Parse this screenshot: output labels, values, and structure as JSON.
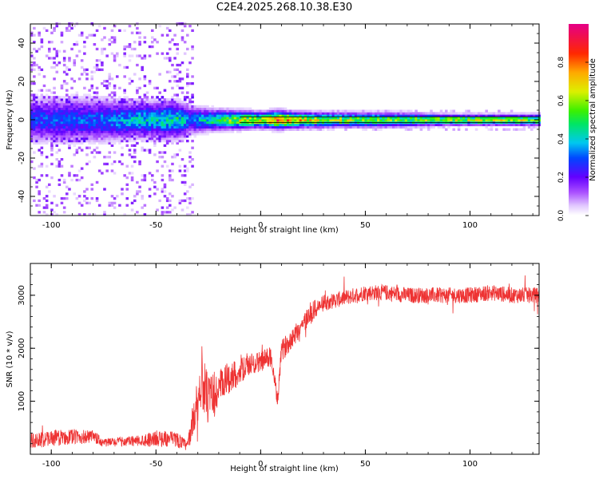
{
  "title": "C2E4.2025.268.10.38.E30",
  "chart_data": [
    {
      "type": "heatmap",
      "title": "C2E4.2025.268.10.38.E30",
      "xlabel": "Height of straight line (km)",
      "ylabel": "Frequency (Hz)",
      "xlim": [
        -110,
        133
      ],
      "ylim": [
        -50,
        50
      ],
      "xticks": [
        -100,
        -50,
        0,
        50,
        100
      ],
      "yticks": [
        -40,
        -20,
        0,
        20,
        40
      ],
      "colorbar": {
        "label": "Normalized spectral amplitude",
        "range": [
          0.0,
          1.0
        ],
        "ticks": [
          0.0,
          0.2,
          0.4,
          0.6,
          0.8
        ],
        "tick_labels": [
          "0.0",
          "0.2",
          "0.4",
          "0.6",
          "0.8"
        ]
      },
      "description_band_center_hz": 0,
      "band_profile": {
        "x_km": [
          -110,
          -80,
          -60,
          -40,
          -34,
          -25,
          -10,
          0,
          8,
          15,
          30,
          60,
          90,
          133
        ],
        "peak_amplitude": [
          0.28,
          0.3,
          0.38,
          0.45,
          0.3,
          0.45,
          0.62,
          0.65,
          0.85,
          0.7,
          0.6,
          0.55,
          0.6,
          0.62
        ],
        "half_width_hz": [
          6,
          6,
          5,
          5,
          4,
          3,
          2.5,
          2.2,
          2.5,
          2.2,
          2,
          2,
          1.5,
          1.5
        ]
      },
      "noise_region_km": [
        -110,
        -33
      ]
    },
    {
      "type": "line",
      "xlabel": "Height of straight line (km)",
      "ylabel": "SNR (10 * v/v)",
      "xlim": [
        -110,
        133
      ],
      "ylim": [
        0,
        3600
      ],
      "xticks": [
        -100,
        -50,
        0,
        50,
        100
      ],
      "yticks": [
        1000,
        2000,
        3000
      ],
      "series": [
        {
          "name": "SNR",
          "color": "#ee3333",
          "x": [
            -110,
            -100,
            -90,
            -80,
            -75,
            -60,
            -50,
            -40,
            -35,
            -32,
            -28,
            -25,
            -20,
            -15,
            -10,
            -5,
            0,
            5,
            8,
            10,
            15,
            20,
            25,
            30,
            40,
            50,
            60,
            70,
            80,
            90,
            100,
            110,
            120,
            133
          ],
          "y": [
            250,
            300,
            330,
            320,
            220,
            250,
            300,
            280,
            150,
            700,
            1400,
            1000,
            1200,
            1450,
            1550,
            1700,
            1750,
            1850,
            1000,
            1950,
            2200,
            2450,
            2700,
            2850,
            2950,
            3050,
            3050,
            3000,
            3000,
            3000,
            3000,
            3050,
            3000,
            3000
          ],
          "noise_amplitude": [
            150,
            150,
            150,
            130,
            80,
            100,
            150,
            150,
            100,
            350,
            500,
            500,
            400,
            300,
            250,
            200,
            200,
            200,
            150,
            200,
            200,
            200,
            200,
            150,
            150,
            150,
            150,
            150,
            150,
            150,
            150,
            150,
            150,
            150
          ]
        }
      ]
    }
  ],
  "colors": {
    "frame": "#000000",
    "line": "#ee3333",
    "background": "#ffffff"
  }
}
